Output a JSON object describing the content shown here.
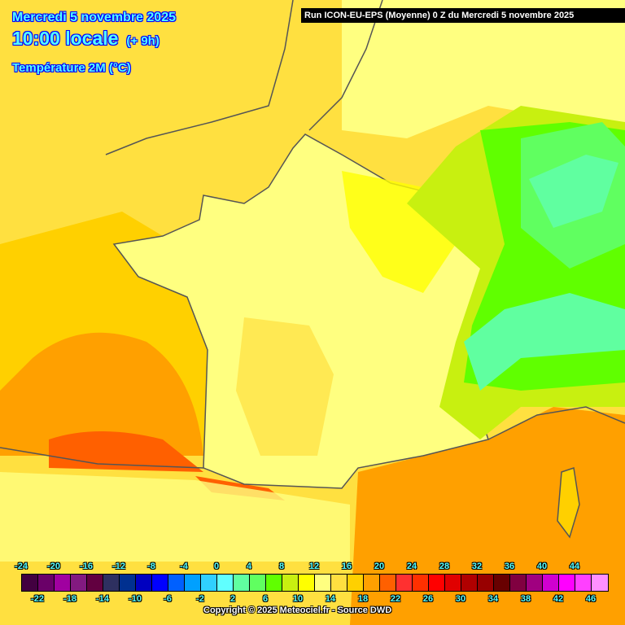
{
  "header": {
    "date": "Mercredi 5 novembre 2025",
    "time": "10:00 locale",
    "offset": "(+ 9h)",
    "parameter": "Température 2M (°C)",
    "run": "Run ICON-EU-EPS (Moyenne) 0 Z du Mercredi 5 novembre 2025"
  },
  "legend": {
    "unit": "°C",
    "top_labels": [
      "-24",
      "-20",
      "-16",
      "-12",
      "-8",
      "-4",
      "0",
      "4",
      "8",
      "12",
      "16",
      "20",
      "24",
      "28",
      "32",
      "36",
      "40",
      "44"
    ],
    "bottom_labels": [
      "-22",
      "-18",
      "-14",
      "-10",
      "-6",
      "-2",
      "2",
      "6",
      "10",
      "14",
      "18",
      "22",
      "26",
      "30",
      "34",
      "38",
      "42",
      "46"
    ],
    "colors": [
      "#420040",
      "#6a0068",
      "#a000a0",
      "#821a80",
      "#620040",
      "#2e3060",
      "#003090",
      "#0000c0",
      "#0000ff",
      "#0060ff",
      "#00a0ff",
      "#30d0ff",
      "#60ffff",
      "#60ffa0",
      "#60ff60",
      "#60ff00",
      "#c8f010",
      "#ffff00",
      "#ffff80",
      "#ffe040",
      "#ffd000",
      "#ffa000",
      "#ff6000",
      "#ff3030",
      "#ff3000",
      "#ff0000",
      "#e00000",
      "#b00000",
      "#980000",
      "#680000",
      "#800040",
      "#a00080",
      "#d000d0",
      "#ff00ff",
      "#ff40ff",
      "#ff90ff"
    ]
  },
  "copyright": "Copyright © 2025 Meteociel.fr - Source DWD"
}
